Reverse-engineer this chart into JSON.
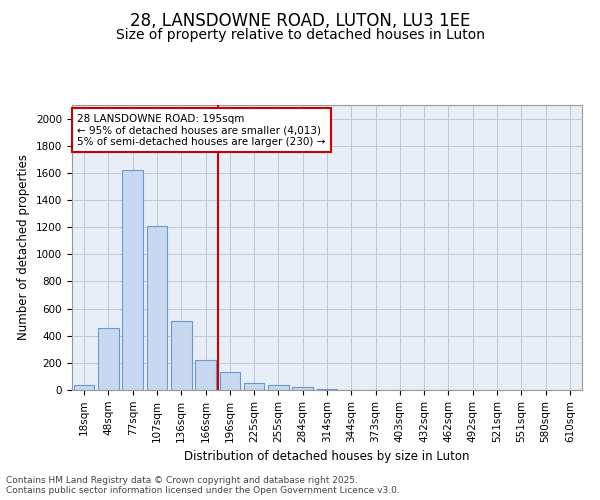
{
  "title1": "28, LANSDOWNE ROAD, LUTON, LU3 1EE",
  "title2": "Size of property relative to detached houses in Luton",
  "xlabel": "Distribution of detached houses by size in Luton",
  "ylabel": "Number of detached properties",
  "categories": [
    "18sqm",
    "48sqm",
    "77sqm",
    "107sqm",
    "136sqm",
    "166sqm",
    "196sqm",
    "225sqm",
    "255sqm",
    "284sqm",
    "314sqm",
    "344sqm",
    "373sqm",
    "403sqm",
    "432sqm",
    "462sqm",
    "492sqm",
    "521sqm",
    "551sqm",
    "580sqm",
    "610sqm"
  ],
  "values": [
    40,
    460,
    1620,
    1210,
    510,
    220,
    130,
    50,
    40,
    20,
    10,
    0,
    0,
    0,
    0,
    0,
    0,
    0,
    0,
    0,
    0
  ],
  "bar_color": "#c8d8f0",
  "bar_edge_color": "#6699cc",
  "vline_color": "#cc0000",
  "annotation_text": "28 LANSDOWNE ROAD: 195sqm\n← 95% of detached houses are smaller (4,013)\n5% of semi-detached houses are larger (230) →",
  "annotation_box_color": "white",
  "annotation_box_edge_color": "#cc0000",
  "ylim": [
    0,
    2100
  ],
  "yticks": [
    0,
    200,
    400,
    600,
    800,
    1000,
    1200,
    1400,
    1600,
    1800,
    2000
  ],
  "bg_color": "#e8eef8",
  "grid_color": "#c0c8d8",
  "footer1": "Contains HM Land Registry data © Crown copyright and database right 2025.",
  "footer2": "Contains public sector information licensed under the Open Government Licence v3.0.",
  "title1_fontsize": 12,
  "title2_fontsize": 10,
  "label_fontsize": 8.5,
  "tick_fontsize": 7.5,
  "footer_fontsize": 6.5
}
